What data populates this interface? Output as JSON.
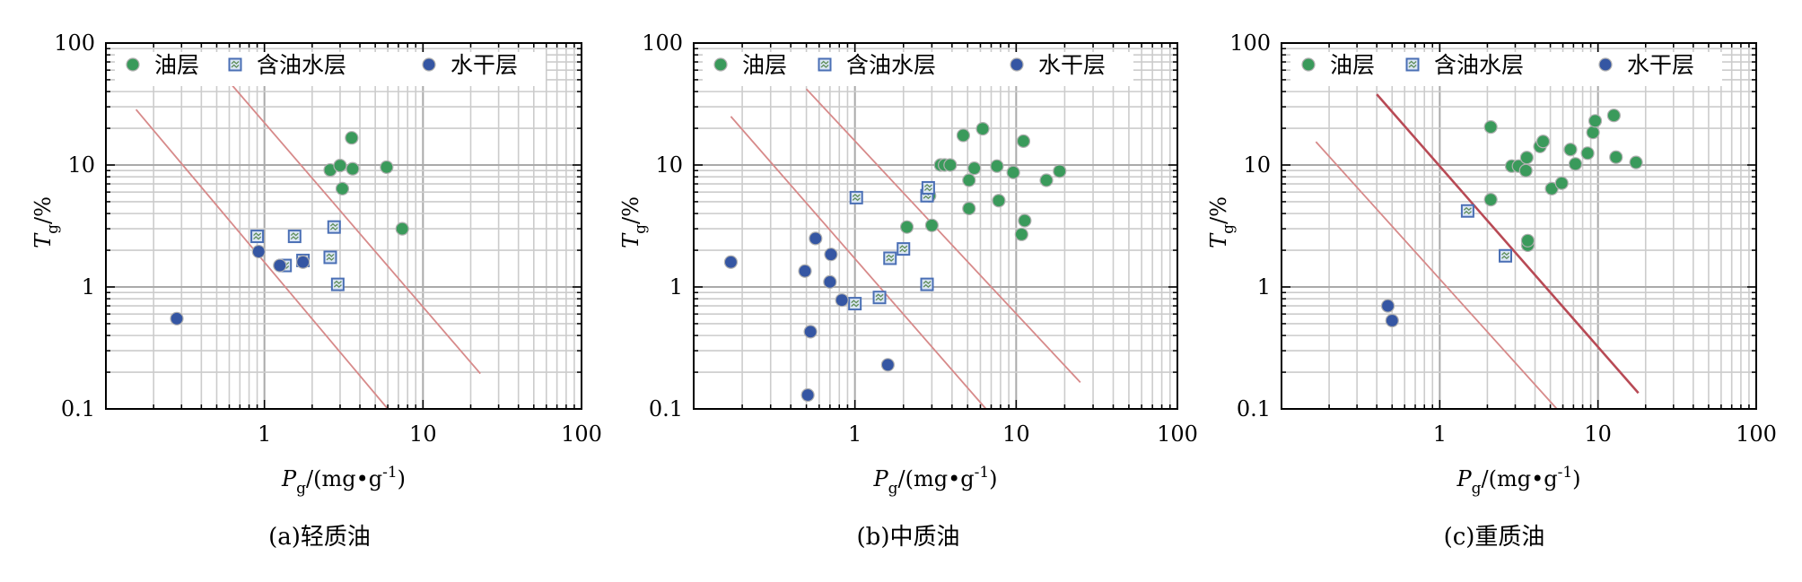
{
  "chart_data": [
    {
      "type": "scatter",
      "caption": "(a)轻质油",
      "xlabel": {
        "main": "P",
        "sub": "g",
        "unit": "/(mg•g",
        "sup": "-1",
        "close": ")"
      },
      "ylabel": {
        "main": "T",
        "sub": "g",
        "unit": "/%"
      },
      "x_scale": "log",
      "y_scale": "log",
      "xlim": [
        0.1,
        100
      ],
      "ylim": [
        0.1,
        100
      ],
      "x_ticks": [
        {
          "v": 1,
          "label": "1"
        },
        {
          "v": 10,
          "label": "10"
        },
        {
          "v": 100,
          "label": "100"
        }
      ],
      "y_ticks": [
        {
          "v": 0.1,
          "label": "0.1"
        },
        {
          "v": 1,
          "label": "1"
        },
        {
          "v": 10,
          "label": "10"
        },
        {
          "v": 100,
          "label": "100"
        }
      ],
      "grid": true,
      "legend_position": "top",
      "series": [
        {
          "name": "油层",
          "marker": "circle",
          "color": "#3a9a5b",
          "points": [
            [
              2.6,
              9.1
            ],
            [
              3.0,
              9.9
            ],
            [
              3.1,
              6.4
            ],
            [
              3.55,
              16.7
            ],
            [
              3.6,
              9.3
            ],
            [
              5.9,
              9.6
            ],
            [
              7.4,
              3.0
            ]
          ]
        },
        {
          "name": "含油水层",
          "marker": "square",
          "color": "#4a6fb5",
          "points": [
            [
              0.9,
              2.6
            ],
            [
              1.35,
              1.5
            ],
            [
              1.55,
              2.6
            ],
            [
              1.75,
              1.65
            ],
            [
              2.6,
              1.75
            ],
            [
              2.75,
              3.1
            ],
            [
              2.9,
              1.05
            ]
          ]
        },
        {
          "name": "水干层",
          "marker": "circle",
          "color": "#3556a3",
          "points": [
            [
              0.28,
              0.55
            ],
            [
              0.92,
              1.95
            ],
            [
              1.25,
              1.5
            ],
            [
              1.75,
              1.6
            ]
          ]
        }
      ],
      "reference_lines": [
        {
          "from": [
            0.155,
            28.5
          ],
          "to": [
            6.0,
            0.1
          ],
          "color": "#d78a8a",
          "width": 1.8
        },
        {
          "from": [
            0.6,
            48.0
          ],
          "to": [
            23.0,
            0.195
          ],
          "color": "#d78a8a",
          "width": 1.8
        }
      ]
    },
    {
      "type": "scatter",
      "caption": "(b)中质油",
      "xlabel": {
        "main": "P",
        "sub": "g",
        "unit": "/(mg•g",
        "sup": "-1",
        "close": ")"
      },
      "ylabel": {
        "main": "T",
        "sub": "g",
        "unit": "/%"
      },
      "x_scale": "log",
      "y_scale": "log",
      "xlim": [
        0.1,
        100
      ],
      "ylim": [
        0.1,
        100
      ],
      "x_ticks": [
        {
          "v": 1,
          "label": "1"
        },
        {
          "v": 10,
          "label": "10"
        },
        {
          "v": 100,
          "label": "100"
        }
      ],
      "y_ticks": [
        {
          "v": 0.1,
          "label": "0.1"
        },
        {
          "v": 1,
          "label": "1"
        },
        {
          "v": 10,
          "label": "10"
        },
        {
          "v": 100,
          "label": "100"
        }
      ],
      "grid": true,
      "legend_position": "top",
      "series": [
        {
          "name": "油层",
          "marker": "circle",
          "color": "#3a9a5b",
          "points": [
            [
              2.1,
              3.1
            ],
            [
              2.9,
              5.6
            ],
            [
              3.0,
              3.2
            ],
            [
              3.4,
              10.0
            ],
            [
              3.6,
              10.0
            ],
            [
              3.9,
              10.0
            ],
            [
              4.7,
              17.5
            ],
            [
              5.1,
              4.4
            ],
            [
              5.1,
              7.5
            ],
            [
              5.5,
              9.4
            ],
            [
              6.2,
              19.8
            ],
            [
              7.6,
              9.8
            ],
            [
              7.8,
              5.1
            ],
            [
              9.6,
              8.7
            ],
            [
              10.8,
              2.7
            ],
            [
              11.1,
              15.7
            ],
            [
              11.3,
              3.5
            ],
            [
              15.4,
              7.5
            ],
            [
              18.6,
              8.9
            ]
          ]
        },
        {
          "name": "含油水层",
          "marker": "square",
          "color": "#4a6fb5",
          "points": [
            [
              1.0,
              0.73
            ],
            [
              1.02,
              5.4
            ],
            [
              1.42,
              0.82
            ],
            [
              1.65,
              1.72
            ],
            [
              2.0,
              2.05
            ],
            [
              2.8,
              1.05
            ],
            [
              2.8,
              5.6
            ],
            [
              2.85,
              6.5
            ]
          ]
        },
        {
          "name": "水干层",
          "marker": "circle",
          "color": "#3556a3",
          "points": [
            [
              0.17,
              1.6
            ],
            [
              0.49,
              1.35
            ],
            [
              0.51,
              0.13
            ],
            [
              0.53,
              0.43
            ],
            [
              0.57,
              2.5
            ],
            [
              0.7,
              1.1
            ],
            [
              0.71,
              1.85
            ],
            [
              0.83,
              0.78
            ],
            [
              1.6,
              0.23
            ]
          ]
        }
      ],
      "reference_lines": [
        {
          "from": [
            0.17,
            25.0
          ],
          "to": [
            6.5,
            0.1
          ],
          "color": "#d78a8a",
          "width": 1.8
        },
        {
          "from": [
            0.5,
            42.0
          ],
          "to": [
            25.0,
            0.165
          ],
          "color": "#d78a8a",
          "width": 1.8
        }
      ]
    },
    {
      "type": "scatter",
      "caption": "(c)重质油",
      "xlabel": {
        "main": "P",
        "sub": "g",
        "unit": "/(mg•g",
        "sup": "-1",
        "close": ")"
      },
      "ylabel": {
        "main": "T",
        "sub": "g",
        "unit": "/%"
      },
      "x_scale": "log",
      "y_scale": "log",
      "xlim": [
        0.1,
        100
      ],
      "ylim": [
        0.1,
        100
      ],
      "x_ticks": [
        {
          "v": 1,
          "label": "1"
        },
        {
          "v": 10,
          "label": "10"
        },
        {
          "v": 100,
          "label": "100"
        }
      ],
      "y_ticks": [
        {
          "v": 0.1,
          "label": "0.1"
        },
        {
          "v": 1,
          "label": "1"
        },
        {
          "v": 10,
          "label": "10"
        },
        {
          "v": 100,
          "label": "100"
        }
      ],
      "grid": true,
      "legend_position": "top",
      "series": [
        {
          "name": "油层",
          "marker": "circle",
          "color": "#3a9a5b",
          "points": [
            [
              2.1,
              5.2
            ],
            [
              2.1,
              20.5
            ],
            [
              2.85,
              9.8
            ],
            [
              3.15,
              9.8
            ],
            [
              3.5,
              9.0
            ],
            [
              3.55,
              11.5
            ],
            [
              3.6,
              2.2
            ],
            [
              3.6,
              2.4
            ],
            [
              4.3,
              14.2
            ],
            [
              4.5,
              15.6
            ],
            [
              5.1,
              6.4
            ],
            [
              5.9,
              7.1
            ],
            [
              6.7,
              13.4
            ],
            [
              7.2,
              10.2
            ],
            [
              8.6,
              12.5
            ],
            [
              9.3,
              18.5
            ],
            [
              9.6,
              23.0
            ],
            [
              12.6,
              25.5
            ],
            [
              13.0,
              11.6
            ],
            [
              17.4,
              10.5
            ]
          ]
        },
        {
          "name": "含油水层",
          "marker": "square",
          "color": "#4a6fb5",
          "points": [
            [
              1.5,
              4.2
            ],
            [
              2.6,
              1.8
            ]
          ]
        },
        {
          "name": "水干层",
          "marker": "circle",
          "color": "#3556a3",
          "points": [
            [
              0.47,
              0.7
            ],
            [
              0.5,
              0.53
            ]
          ]
        }
      ],
      "reference_lines": [
        {
          "from": [
            0.165,
            15.5
          ],
          "to": [
            5.5,
            0.1
          ],
          "color": "#d78a8a",
          "width": 1.8
        },
        {
          "from": [
            0.4,
            38.0
          ],
          "to": [
            18.0,
            0.135
          ],
          "color": "#b84a55",
          "width": 2.6
        }
      ]
    }
  ]
}
